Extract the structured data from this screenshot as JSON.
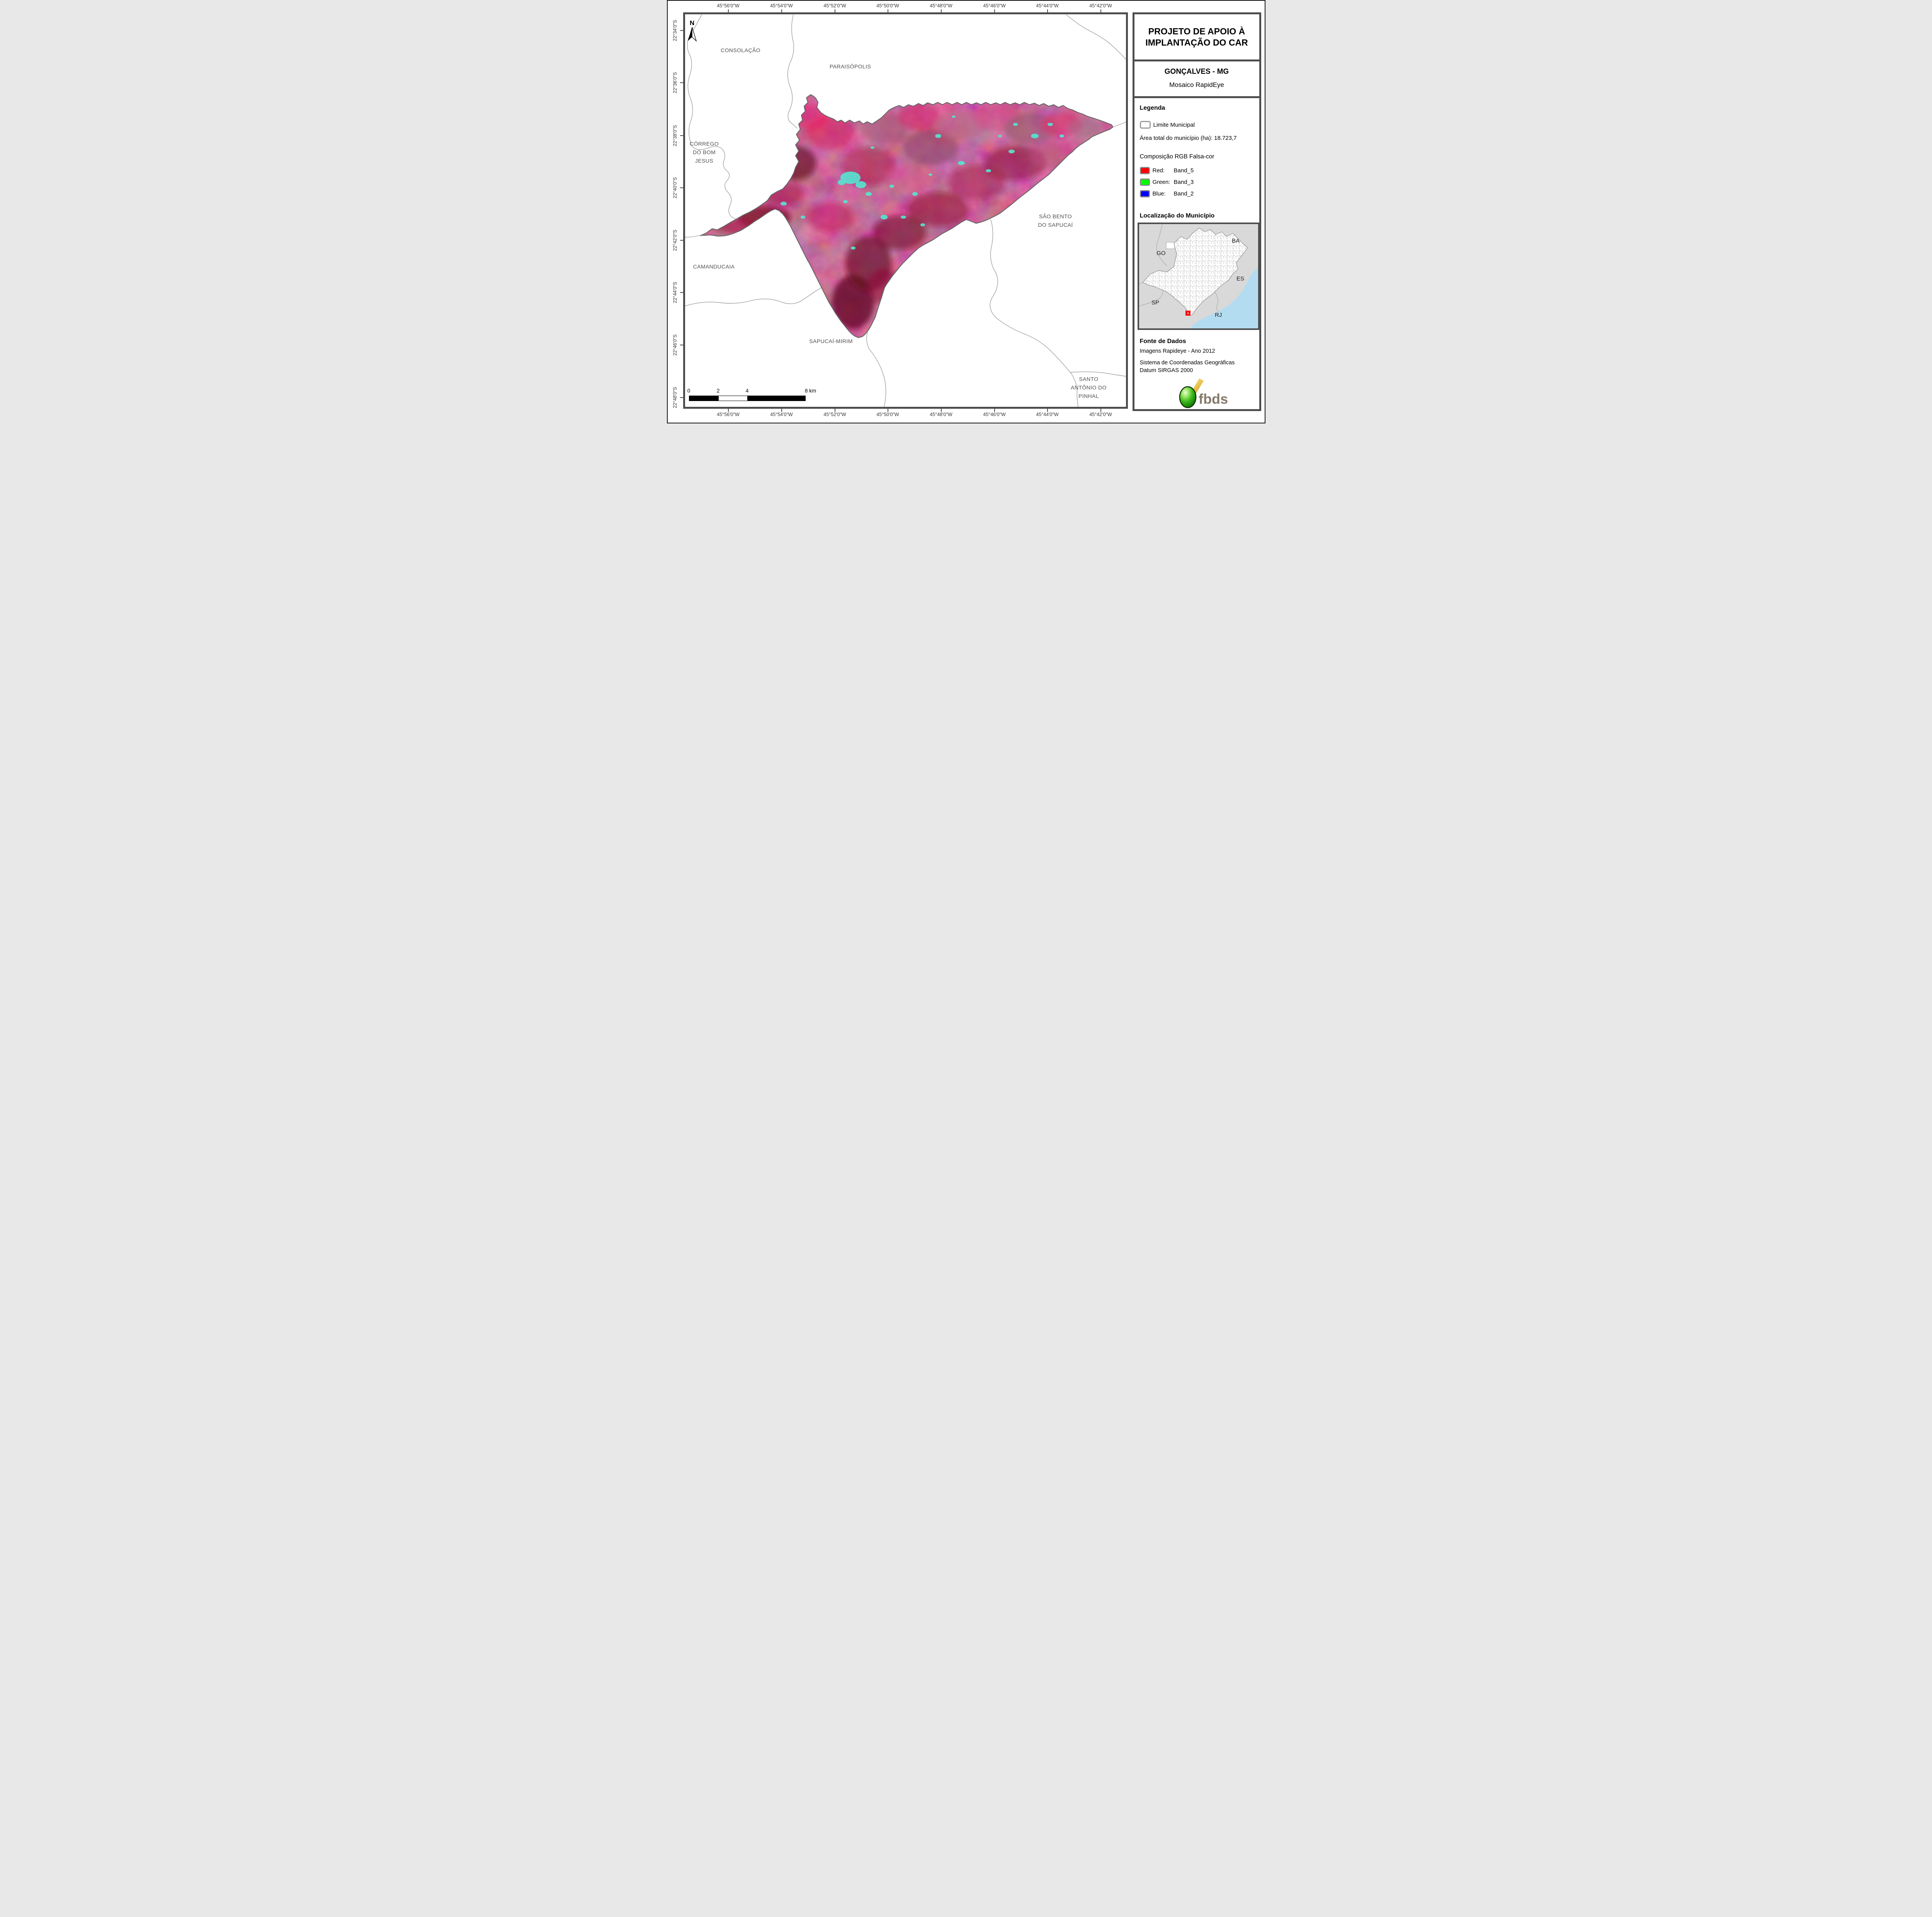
{
  "panel": {
    "title": "PROJETO DE APOIO À IMPLANTAÇÃO DO CAR",
    "municipality_title": "GONÇALVES - MG",
    "subtitle": "Mosaico RapidEye",
    "legend": {
      "heading": "Legenda",
      "limit_label": "Limite Municipal",
      "area_label": "Área total do município (ha): 18.723,7",
      "rgb_heading": "Composição RGB Falsa-cor",
      "rgb_rows": [
        {
          "channel": "Red:",
          "band": "Band_5",
          "color": "#ff0000"
        },
        {
          "channel": "Green:",
          "band": "Band_3",
          "color": "#00ff00"
        },
        {
          "channel": "Blue:",
          "band": "Band_2",
          "color": "#0000ff"
        }
      ]
    },
    "location": {
      "heading": "Localização do Município",
      "state_labels": [
        "GO",
        "BA",
        "ES",
        "SP",
        "RJ"
      ],
      "marker_color": "#ff0000"
    },
    "source": {
      "heading": "Fonte de Dados",
      "lines": [
        "Imagens Rapideye - Ano 2012",
        "Sistema de Coordenadas Geográficas",
        "Datum SIRGAS 2000"
      ]
    },
    "logo": {
      "text": "fbds"
    }
  },
  "map": {
    "north_indicator": "N",
    "place_labels": [
      {
        "id": "consolacao",
        "lines": [
          "CONSOLAÇÃO"
        ]
      },
      {
        "id": "paraisopolis",
        "lines": [
          "PARAISÓPOLIS"
        ]
      },
      {
        "id": "corrego",
        "lines": [
          "CÓRREGO",
          "DO BOM",
          "JESUS"
        ]
      },
      {
        "id": "camanducaia",
        "lines": [
          "CAMANDUCAIA"
        ]
      },
      {
        "id": "sao-bento",
        "lines": [
          "SÃO BENTO",
          "DO SAPUCAÍ"
        ]
      },
      {
        "id": "sapucai-mirim",
        "lines": [
          "SAPUCAÍ-MIRIM"
        ]
      },
      {
        "id": "santo-antonio",
        "lines": [
          "SANTO",
          "ANTÔNIO DO",
          "PINHAL"
        ]
      }
    ],
    "axis": {
      "top": [
        "45°56'0\"W",
        "45°54'0\"W",
        "45°52'0\"W",
        "45°50'0\"W",
        "45°48'0\"W",
        "45°46'0\"W",
        "45°44'0\"W",
        "45°42'0\"W"
      ],
      "bottom": [
        "45°56'0\"W",
        "45°54'0\"W",
        "45°52'0\"W",
        "45°50'0\"W",
        "45°48'0\"W",
        "45°46'0\"W",
        "45°44'0\"W",
        "45°42'0\"W"
      ],
      "left": [
        "22°34'0\"S",
        "22°36'0\"S",
        "22°38'0\"S",
        "22°40'0\"S",
        "22°42'0\"S",
        "22°44'0\"S",
        "22°46'0\"S",
        "22°48'0\"S"
      ]
    },
    "scalebar": {
      "tick_labels": [
        "0",
        "2",
        "4",
        "8 km"
      ]
    }
  },
  "colors": {
    "frame": "#4d4d4d",
    "boundary_line": "#9e9e9e",
    "map_label_text": "#4f4f4f",
    "inset_background": "#d9d9d9",
    "ocean": "#b3dcf0",
    "municipality_outline": "#666666",
    "marker": "#ff0000"
  }
}
